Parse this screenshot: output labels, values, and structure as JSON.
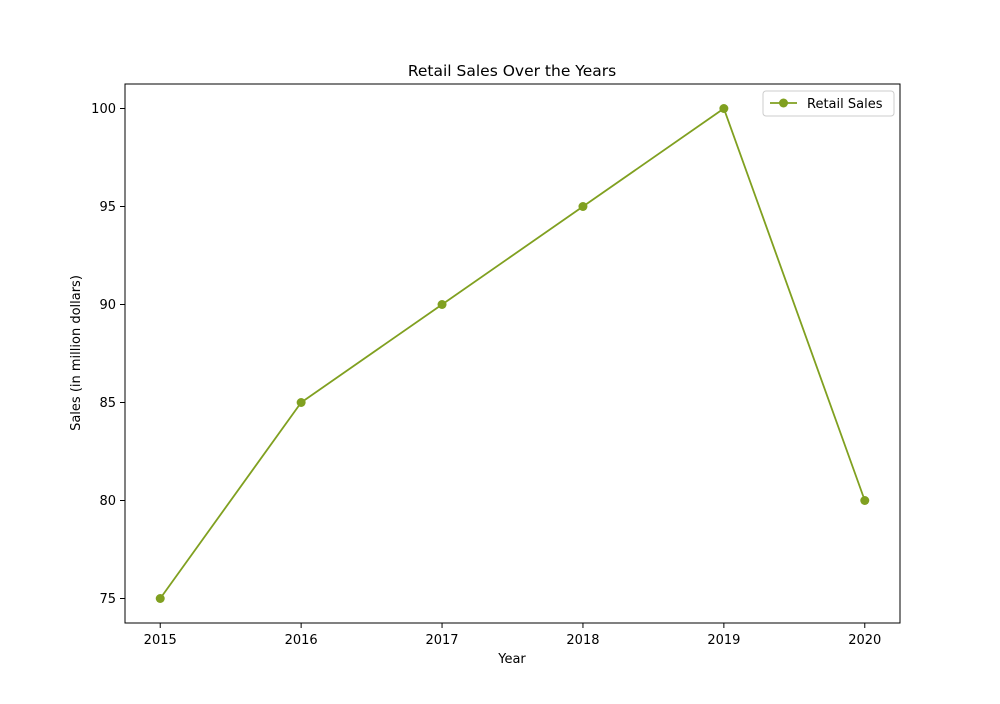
{
  "chart_data": {
    "type": "line",
    "title": "Retail Sales Over the Years",
    "xlabel": "Year",
    "ylabel": "Sales (in million dollars)",
    "x": [
      2015,
      2016,
      2017,
      2018,
      2019,
      2020
    ],
    "xticks": [
      "2015",
      "2016",
      "2017",
      "2018",
      "2019",
      "2020"
    ],
    "yticks": [
      "75",
      "80",
      "85",
      "90",
      "95",
      "100"
    ],
    "xlim": [
      2014.75,
      2020.25
    ],
    "ylim": [
      73.75,
      101.25
    ],
    "grid": false,
    "legend_position": "top-right",
    "series": [
      {
        "name": "Retail Sales",
        "values": [
          75,
          85,
          90,
          95,
          100,
          80
        ],
        "color": "#80a020",
        "marker": "circle"
      }
    ]
  }
}
